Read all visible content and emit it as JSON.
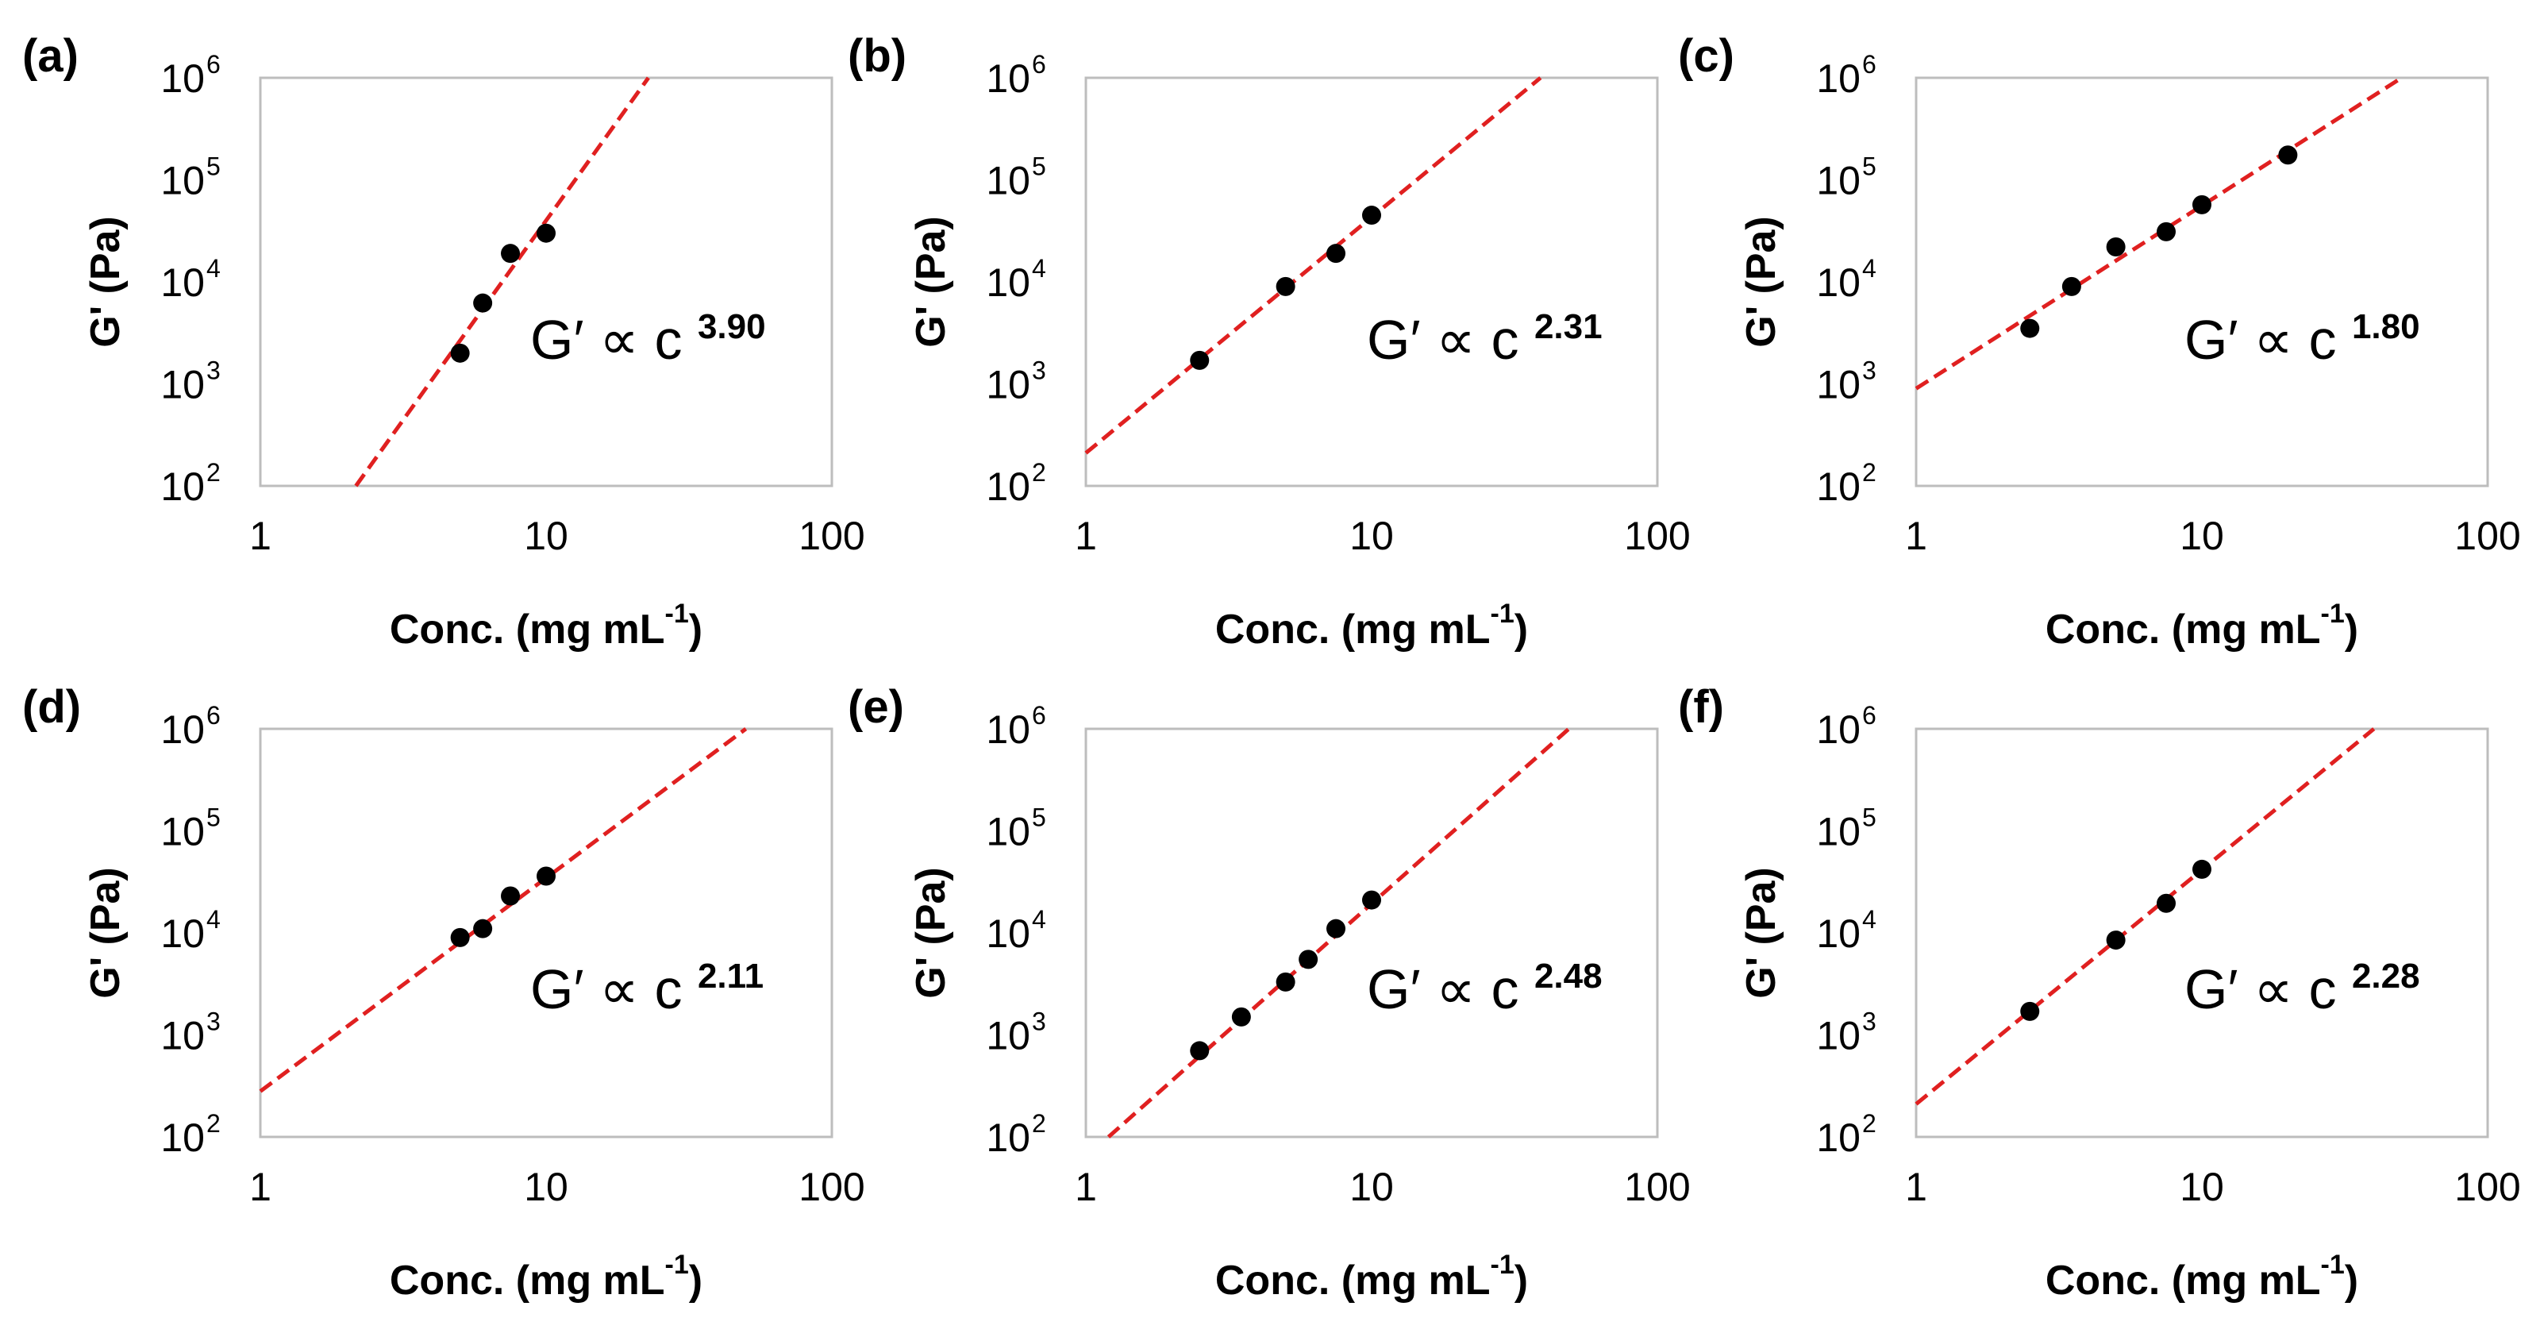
{
  "chart_data": [
    {
      "panel": "(a)",
      "type": "scatter",
      "xscale": "log",
      "yscale": "log",
      "xlabel": "Conc. (mg mL",
      "xlabel_sup": "-1",
      "xlabel_end": ")",
      "ylabel": "G' (Pa)",
      "xlim": [
        1,
        100
      ],
      "ylim": [
        100,
        1000000
      ],
      "xticks": [
        {
          "value": 1,
          "label": "1"
        },
        {
          "value": 10,
          "label": "10"
        },
        {
          "value": 100,
          "label": "100"
        }
      ],
      "yticks": [
        {
          "value": 100,
          "base": "10",
          "exp": "2"
        },
        {
          "value": 1000,
          "base": "10",
          "exp": "3"
        },
        {
          "value": 10000,
          "base": "10",
          "exp": "4"
        },
        {
          "value": 100000,
          "base": "10",
          "exp": "5"
        },
        {
          "value": 1000000,
          "base": "10",
          "exp": "6"
        }
      ],
      "points": [
        [
          5,
          2000
        ],
        [
          6,
          6200
        ],
        [
          7.5,
          19000
        ],
        [
          10,
          30000
        ]
      ],
      "fit": {
        "x": [
          2.16,
          22.8
        ],
        "y": [
          100,
          1000000
        ],
        "color": "#e02020"
      },
      "annotation": "G′ ∝ c",
      "exponent": "3.90"
    },
    {
      "panel": "(b)",
      "type": "scatter",
      "xscale": "log",
      "yscale": "log",
      "xlabel": "Conc. (mg mL",
      "xlabel_sup": "-1",
      "xlabel_end": ")",
      "ylabel": "G' (Pa)",
      "xlim": [
        1,
        100
      ],
      "ylim": [
        100,
        1000000
      ],
      "xticks": [
        {
          "value": 1,
          "label": "1"
        },
        {
          "value": 10,
          "label": "10"
        },
        {
          "value": 100,
          "label": "100"
        }
      ],
      "yticks": [
        {
          "value": 100,
          "base": "10",
          "exp": "2"
        },
        {
          "value": 1000,
          "base": "10",
          "exp": "3"
        },
        {
          "value": 10000,
          "base": "10",
          "exp": "4"
        },
        {
          "value": 100000,
          "base": "10",
          "exp": "5"
        },
        {
          "value": 1000000,
          "base": "10",
          "exp": "6"
        }
      ],
      "points": [
        [
          2.5,
          1700
        ],
        [
          5,
          9000
        ],
        [
          7.5,
          19000
        ],
        [
          10,
          45000
        ]
      ],
      "fit": {
        "x": [
          1,
          39
        ],
        "y": [
          210,
          1000000
        ],
        "color": "#e02020"
      },
      "annotation": "G′ ∝ c",
      "exponent": "2.31"
    },
    {
      "panel": "(c)",
      "type": "scatter",
      "xscale": "log",
      "yscale": "log",
      "xlabel": "Conc. (mg mL",
      "xlabel_sup": "-1",
      "xlabel_end": ")",
      "ylabel": "G' (Pa)",
      "xlim": [
        1,
        100
      ],
      "ylim": [
        100,
        1000000
      ],
      "xticks": [
        {
          "value": 1,
          "label": "1"
        },
        {
          "value": 10,
          "label": "10"
        },
        {
          "value": 100,
          "label": "100"
        }
      ],
      "yticks": [
        {
          "value": 100,
          "base": "10",
          "exp": "2"
        },
        {
          "value": 1000,
          "base": "10",
          "exp": "3"
        },
        {
          "value": 10000,
          "base": "10",
          "exp": "4"
        },
        {
          "value": 100000,
          "base": "10",
          "exp": "5"
        },
        {
          "value": 1000000,
          "base": "10",
          "exp": "6"
        }
      ],
      "points": [
        [
          2.5,
          3500
        ],
        [
          3.5,
          9000
        ],
        [
          5,
          22000
        ],
        [
          7.5,
          31000
        ],
        [
          10,
          57000
        ],
        [
          20,
          175000
        ]
      ],
      "fit": {
        "x": [
          1,
          50
        ],
        "y": [
          900,
          1000000
        ],
        "color": "#e02020"
      },
      "annotation": "G′ ∝ c",
      "exponent": "1.80"
    },
    {
      "panel": "(d)",
      "type": "scatter",
      "xscale": "log",
      "yscale": "log",
      "xlabel": "Conc. (mg mL",
      "xlabel_sup": "-1",
      "xlabel_end": ")",
      "ylabel": "G' (Pa)",
      "xlim": [
        1,
        100
      ],
      "ylim": [
        100,
        1000000
      ],
      "xticks": [
        {
          "value": 1,
          "label": "1"
        },
        {
          "value": 10,
          "label": "10"
        },
        {
          "value": 100,
          "label": "100"
        }
      ],
      "yticks": [
        {
          "value": 100,
          "base": "10",
          "exp": "2"
        },
        {
          "value": 1000,
          "base": "10",
          "exp": "3"
        },
        {
          "value": 10000,
          "base": "10",
          "exp": "4"
        },
        {
          "value": 100000,
          "base": "10",
          "exp": "5"
        },
        {
          "value": 1000000,
          "base": "10",
          "exp": "6"
        }
      ],
      "points": [
        [
          5,
          9000
        ],
        [
          6,
          11000
        ],
        [
          7.5,
          23000
        ],
        [
          10,
          36000
        ]
      ],
      "fit": {
        "x": [
          1,
          50
        ],
        "y": [
          280,
          1000000
        ],
        "color": "#e02020"
      },
      "annotation": "G′ ∝ c",
      "exponent": "2.11"
    },
    {
      "panel": "(e)",
      "type": "scatter",
      "xscale": "log",
      "yscale": "log",
      "xlabel": "Conc. (mg mL",
      "xlabel_sup": "-1",
      "xlabel_end": ")",
      "ylabel": "G' (Pa)",
      "xlim": [
        1,
        100
      ],
      "ylim": [
        100,
        1000000
      ],
      "xticks": [
        {
          "value": 1,
          "label": "1"
        },
        {
          "value": 10,
          "label": "10"
        },
        {
          "value": 100,
          "label": "100"
        }
      ],
      "yticks": [
        {
          "value": 100,
          "base": "10",
          "exp": "2"
        },
        {
          "value": 1000,
          "base": "10",
          "exp": "3"
        },
        {
          "value": 10000,
          "base": "10",
          "exp": "4"
        },
        {
          "value": 100000,
          "base": "10",
          "exp": "5"
        },
        {
          "value": 1000000,
          "base": "10",
          "exp": "6"
        }
      ],
      "points": [
        [
          2.5,
          700
        ],
        [
          3.5,
          1500
        ],
        [
          5,
          3300
        ],
        [
          6,
          5500
        ],
        [
          7.5,
          11000
        ],
        [
          10,
          21000
        ]
      ],
      "fit": {
        "x": [
          1.2,
          49
        ],
        "y": [
          100,
          1000000
        ],
        "color": "#e02020"
      },
      "annotation": "G′ ∝ c",
      "exponent": "2.48"
    },
    {
      "panel": "(f)",
      "type": "scatter",
      "xscale": "log",
      "yscale": "log",
      "xlabel": "Conc. (mg mL",
      "xlabel_sup": "-1",
      "xlabel_end": ")",
      "ylabel": "G' (Pa)",
      "xlim": [
        1,
        100
      ],
      "ylim": [
        100,
        1000000
      ],
      "xticks": [
        {
          "value": 1,
          "label": "1"
        },
        {
          "value": 10,
          "label": "10"
        },
        {
          "value": 100,
          "label": "100"
        }
      ],
      "yticks": [
        {
          "value": 100,
          "base": "10",
          "exp": "2"
        },
        {
          "value": 1000,
          "base": "10",
          "exp": "3"
        },
        {
          "value": 10000,
          "base": "10",
          "exp": "4"
        },
        {
          "value": 100000,
          "base": "10",
          "exp": "5"
        },
        {
          "value": 1000000,
          "base": "10",
          "exp": "6"
        }
      ],
      "points": [
        [
          2.5,
          1700
        ],
        [
          5,
          8500
        ],
        [
          7.5,
          19500
        ],
        [
          10,
          42000
        ]
      ],
      "fit": {
        "x": [
          1,
          40
        ],
        "y": [
          210,
          1000000
        ],
        "color": "#e02020"
      },
      "annotation": "G′ ∝ c",
      "exponent": "2.28"
    }
  ]
}
